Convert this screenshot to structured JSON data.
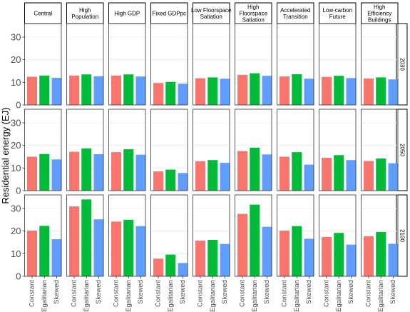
{
  "chart_data": {
    "type": "bar",
    "ylabel": "Residential energy (EJ)",
    "xlabel": "",
    "yticks": [
      0,
      10,
      20,
      30
    ],
    "ylim": [
      0,
      36
    ],
    "grid": true,
    "legend": "none",
    "categories": [
      "Constant",
      "Egalitarian",
      "Skewed"
    ],
    "colors": {
      "Constant": "#F8766D",
      "Egalitarian": "#00BA38",
      "Skewed": "#619CFF"
    },
    "facet_columns": [
      [
        "Central"
      ],
      [
        "High",
        "Population"
      ],
      [
        "High GDP"
      ],
      [
        "Fixed GDPpc"
      ],
      [
        "Low Floorspace",
        "Satiation"
      ],
      [
        "High",
        "Floorspace",
        "Satiation"
      ],
      [
        "Accelerated",
        "Transition"
      ],
      [
        "Low-carbon",
        "Future"
      ],
      [
        "High",
        "Efficiency",
        "Buildings"
      ]
    ],
    "facet_rows": [
      "2030",
      "2050",
      "2100"
    ],
    "values": {
      "2030": [
        [
          12.5,
          13.0,
          12.0
        ],
        [
          13.0,
          13.5,
          12.7
        ],
        [
          13.0,
          13.5,
          12.6
        ],
        [
          9.7,
          10.2,
          9.4
        ],
        [
          11.8,
          12.2,
          11.6
        ],
        [
          13.3,
          14.0,
          12.9
        ],
        [
          12.6,
          13.6,
          11.6
        ],
        [
          12.4,
          12.9,
          11.9
        ],
        [
          11.7,
          12.2,
          11.3
        ]
      ],
      "2050": [
        [
          15.0,
          16.2,
          13.8
        ],
        [
          17.2,
          18.7,
          16.1
        ],
        [
          17.0,
          18.3,
          15.9
        ],
        [
          8.5,
          9.3,
          7.8
        ],
        [
          13.0,
          13.5,
          12.3
        ],
        [
          17.5,
          19.0,
          16.0
        ],
        [
          15.0,
          17.0,
          11.5
        ],
        [
          14.5,
          15.7,
          13.5
        ],
        [
          13.1,
          14.2,
          12.1
        ]
      ],
      "2100": [
        [
          20.2,
          22.3,
          16.4
        ],
        [
          30.9,
          34.0,
          25.2
        ],
        [
          24.2,
          25.0,
          22.2
        ],
        [
          7.8,
          9.6,
          5.9
        ],
        [
          15.8,
          16.1,
          14.3
        ],
        [
          27.6,
          31.7,
          21.9
        ],
        [
          20.2,
          22.2,
          16.6
        ],
        [
          17.4,
          19.2,
          14.0
        ],
        [
          17.7,
          19.6,
          14.4
        ]
      ]
    }
  }
}
